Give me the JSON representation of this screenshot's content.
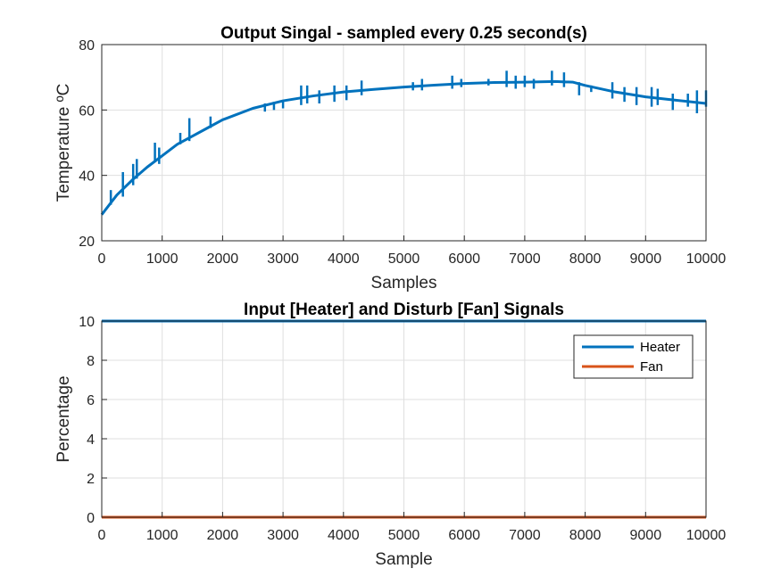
{
  "chart_data": [
    {
      "type": "line",
      "title": "Output Singal - sampled every 0.25 second(s)",
      "xlabel": "Samples",
      "ylabel": "Temperature ºC",
      "xlim": [
        0,
        10000
      ],
      "ylim": [
        20,
        80
      ],
      "xticks": [
        0,
        1000,
        2000,
        3000,
        4000,
        5000,
        6000,
        7000,
        8000,
        9000,
        10000
      ],
      "yticks": [
        20,
        40,
        60,
        80
      ],
      "grid": true,
      "series": [
        {
          "color": "#0072BD",
          "x": [
            0,
            250,
            500,
            750,
            1000,
            1250,
            1500,
            1750,
            2000,
            2500,
            3000,
            3500,
            4000,
            4500,
            5000,
            5500,
            6000,
            6500,
            7000,
            7500,
            7800,
            8000,
            8500,
            9000,
            9500,
            10000
          ],
          "y": [
            28,
            34,
            38.5,
            42.5,
            46,
            49.5,
            52,
            54.5,
            57,
            60.5,
            62.8,
            64.3,
            65.5,
            66.3,
            67,
            67.6,
            68.1,
            68.4,
            68.5,
            68.7,
            68.5,
            67.5,
            65.5,
            64,
            63,
            62
          ],
          "spikes": [
            [
              150,
              35.5,
              31
            ],
            [
              350,
              41,
              33.5
            ],
            [
              520,
              43.5,
              37
            ],
            [
              580,
              45,
              39
            ],
            [
              880,
              50,
              44
            ],
            [
              950,
              48.5,
              43.5
            ],
            [
              1300,
              53,
              49.5
            ],
            [
              1450,
              57.5,
              50.5
            ],
            [
              1800,
              58,
              54.5
            ],
            [
              2700,
              62,
              59.5
            ],
            [
              2850,
              62.5,
              60
            ],
            [
              3000,
              63,
              60.5
            ],
            [
              3300,
              67.5,
              61.5
            ],
            [
              3400,
              67.5,
              62
            ],
            [
              3600,
              66,
              62
            ],
            [
              3850,
              67.5,
              62.5
            ],
            [
              4050,
              67.5,
              63
            ],
            [
              4300,
              69,
              64.5
            ],
            [
              5150,
              68.5,
              66
            ],
            [
              5300,
              69.5,
              66
            ],
            [
              5800,
              70.5,
              66.5
            ],
            [
              5950,
              69.5,
              67
            ],
            [
              6400,
              69.5,
              67.5
            ],
            [
              6700,
              72,
              67
            ],
            [
              6850,
              70.5,
              66.5
            ],
            [
              7000,
              70.5,
              67
            ],
            [
              7150,
              69.5,
              66.5
            ],
            [
              7450,
              72,
              67.5
            ],
            [
              7650,
              71.5,
              67
            ],
            [
              7900,
              68.5,
              64.5
            ],
            [
              8100,
              67.5,
              65.5
            ],
            [
              8450,
              68.5,
              63.5
            ],
            [
              8650,
              67,
              62.5
            ],
            [
              8850,
              67,
              61.5
            ],
            [
              9100,
              67,
              61
            ],
            [
              9200,
              66.5,
              61.5
            ],
            [
              9450,
              65,
              60
            ],
            [
              9700,
              65,
              61
            ],
            [
              9850,
              66,
              59
            ],
            [
              10000,
              66,
              61
            ]
          ]
        }
      ]
    },
    {
      "type": "line",
      "title": "Input [Heater] and Disturb [Fan] Signals",
      "xlabel": "Sample",
      "ylabel": "Percentage",
      "xlim": [
        0,
        10000
      ],
      "ylim": [
        0,
        10
      ],
      "xticks": [
        0,
        1000,
        2000,
        3000,
        4000,
        5000,
        6000,
        7000,
        8000,
        9000,
        10000
      ],
      "yticks": [
        0,
        2,
        4,
        6,
        8,
        10
      ],
      "grid": true,
      "legend_position": "top-right",
      "series": [
        {
          "name": "Heater",
          "color": "#0072BD",
          "x": [
            0,
            10000
          ],
          "y": [
            10,
            10
          ]
        },
        {
          "name": "Fan",
          "color": "#D95319",
          "x": [
            0,
            10000
          ],
          "y": [
            0,
            0
          ]
        }
      ]
    }
  ]
}
